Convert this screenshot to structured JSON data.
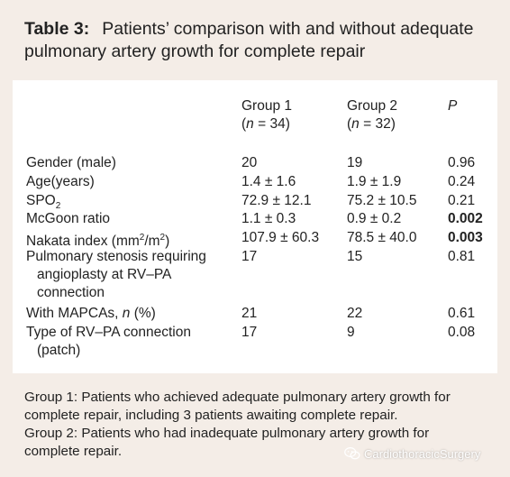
{
  "caption": {
    "label": "Table 3:",
    "line1": "Patients’ comparison with and without adequate",
    "line2": "pulmonary artery growth for complete repair"
  },
  "columns": {
    "group1_name": "Group 1",
    "group1_n_open": "(",
    "group1_n_italic": "n",
    "group1_n_close": " = 34)",
    "group2_name": "Group 2",
    "group2_n_open": "(",
    "group2_n_italic": "n",
    "group2_n_close": " = 32)",
    "p": "P"
  },
  "rows": [
    {
      "label": "Gender (male)",
      "g1": "20",
      "g2": "19",
      "p": "0.96"
    },
    {
      "label": "Age(years)",
      "g1": "1.4 ± 1.6",
      "g2": "1.9 ± 1.9",
      "p": "0.24"
    },
    {
      "label_main": "SPO",
      "label_sub": "2",
      "g1": "72.9 ± 12.1",
      "g2": "75.2 ± 10.5",
      "p": "0.21"
    },
    {
      "label": "McGoon ratio",
      "g1": "1.1 ± 0.3",
      "g2": "0.9 ± 0.2",
      "p": "0.002"
    },
    {
      "label_main": "Nakata index (mm",
      "label_sup1": "2",
      "label_mid": "/m",
      "label_sup2": "2",
      "label_end": ")",
      "g1": "107.9 ± 60.3",
      "g2": "78.5 ± 40.0",
      "p": "0.003"
    },
    {
      "label_l1": "Pulmonary stenosis requiring",
      "label_l2": "angioplasty at RV–PA",
      "label_l3": "connection",
      "g1": "17",
      "g2": "15",
      "p": "0.81"
    },
    {
      "label_main": "With MAPCAs, ",
      "label_italic": "n",
      "label_end": " (%)",
      "g1": "21",
      "g2": "22",
      "p": "0.61"
    },
    {
      "label_l1": "Type of RV–PA connection",
      "label_l2": "(patch)",
      "g1": "17",
      "g2": "9",
      "p": "0.08"
    }
  ],
  "footnote": {
    "line1": "Group 1: Patients who achieved adequate pulmonary artery growth for",
    "line2": "complete repair, including 3 patients awaiting complete repair.",
    "line3": "Group 2: Patients who had inadequate pulmonary artery growth for",
    "line4": "complete repair."
  },
  "watermark": {
    "text": "CardiothoracicSurgery",
    "icon": "wechat-icon"
  }
}
